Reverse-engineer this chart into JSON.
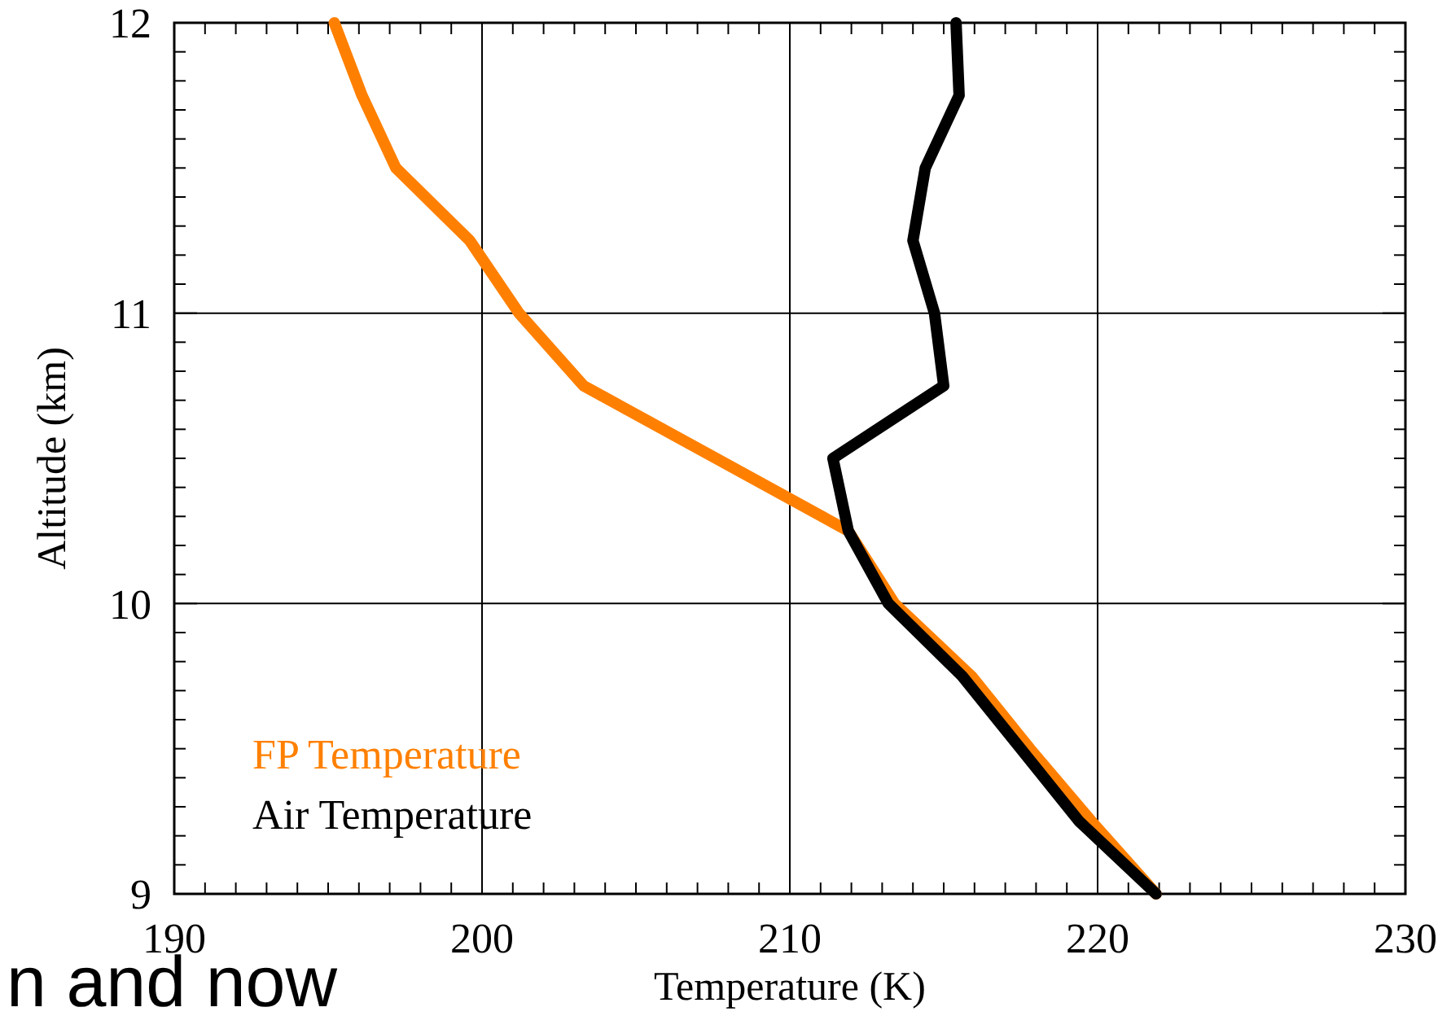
{
  "chart_data": {
    "type": "line",
    "xlabel": "Temperature (K)",
    "ylabel": "Altitude (km)",
    "xlim": [
      190,
      230
    ],
    "ylim": [
      9,
      12
    ],
    "xticks": [
      190,
      {
        "value": 191,
        "label": null
      },
      {
        "value": 192,
        "label": null
      },
      {
        "value": 193,
        "label": null
      },
      {
        "value": 194,
        "label": null
      },
      {
        "value": 195,
        "label": null
      },
      {
        "value": 196,
        "label": null
      },
      {
        "value": 197,
        "label": null
      },
      {
        "value": 198,
        "label": null
      },
      {
        "value": 199,
        "label": null
      },
      200,
      {
        "value": 201,
        "label": null
      },
      {
        "value": 202,
        "label": null
      },
      {
        "value": 203,
        "label": null
      },
      {
        "value": 204,
        "label": null
      },
      {
        "value": 205,
        "label": null
      },
      {
        "value": 206,
        "label": null
      },
      {
        "value": 207,
        "label": null
      },
      {
        "value": 208,
        "label": null
      },
      {
        "value": 209,
        "label": null
      },
      210,
      {
        "value": 211,
        "label": null
      },
      {
        "value": 212,
        "label": null
      },
      {
        "value": 213,
        "label": null
      },
      {
        "value": 214,
        "label": null
      },
      {
        "value": 215,
        "label": null
      },
      {
        "value": 216,
        "label": null
      },
      {
        "value": 217,
        "label": null
      },
      {
        "value": 218,
        "label": null
      },
      {
        "value": 219,
        "label": null
      },
      220,
      {
        "value": 221,
        "label": null
      },
      {
        "value": 222,
        "label": null
      },
      {
        "value": 223,
        "label": null
      },
      {
        "value": 224,
        "label": null
      },
      {
        "value": 225,
        "label": null
      },
      {
        "value": 226,
        "label": null
      },
      {
        "value": 227,
        "label": null
      },
      {
        "value": 228,
        "label": null
      },
      {
        "value": 229,
        "label": null
      },
      230
    ],
    "yticks": [
      9,
      {
        "value": 9.1,
        "label": null
      },
      {
        "value": 9.2,
        "label": null
      },
      {
        "value": 9.3,
        "label": null
      },
      {
        "value": 9.4,
        "label": null
      },
      {
        "value": 9.5,
        "label": null
      },
      {
        "value": 9.6,
        "label": null
      },
      {
        "value": 9.7,
        "label": null
      },
      {
        "value": 9.8,
        "label": null
      },
      {
        "value": 9.9,
        "label": null
      },
      10,
      {
        "value": 10.1,
        "label": null
      },
      {
        "value": 10.2,
        "label": null
      },
      {
        "value": 10.3,
        "label": null
      },
      {
        "value": 10.4,
        "label": null
      },
      {
        "value": 10.5,
        "label": null
      },
      {
        "value": 10.6,
        "label": null
      },
      {
        "value": 10.7,
        "label": null
      },
      {
        "value": 10.8,
        "label": null
      },
      {
        "value": 10.9,
        "label": null
      },
      11,
      {
        "value": 11.1,
        "label": null
      },
      {
        "value": 11.2,
        "label": null
      },
      {
        "value": 11.3,
        "label": null
      },
      {
        "value": 11.4,
        "label": null
      },
      {
        "value": 11.5,
        "label": null
      },
      {
        "value": 11.6,
        "label": null
      },
      {
        "value": 11.7,
        "label": null
      },
      {
        "value": 11.8,
        "label": null
      },
      {
        "value": 11.9,
        "label": null
      },
      12
    ],
    "grid": true,
    "legend": "bottom left",
    "marker": "none",
    "line_style": "solid",
    "annotations": [
      "n and now"
    ],
    "series": [
      {
        "name": "FP Temperature",
        "color": "#ff8000",
        "x": [
          195.2,
          196.1,
          197.2,
          199.6,
          201.2,
          203.3,
          211.9,
          213.4,
          215.9,
          217.8,
          219.8,
          221.9
        ],
        "values": [
          12,
          11.75,
          11.5,
          11.25,
          11,
          10.75,
          10.25,
          10,
          9.75,
          9.5,
          9.25,
          9
        ]
      },
      {
        "name": "Air Temperature",
        "color": "#000000",
        "x": [
          215.4,
          215.5,
          214.4,
          214.0,
          214.7,
          215.0,
          211.4,
          211.9,
          213.2,
          215.6,
          217.5,
          219.4,
          221.9
        ],
        "values": [
          12,
          11.75,
          11.5,
          11.25,
          11,
          10.75,
          10.5,
          10.25,
          10,
          9.75,
          9.5,
          9.25,
          9
        ]
      }
    ]
  }
}
